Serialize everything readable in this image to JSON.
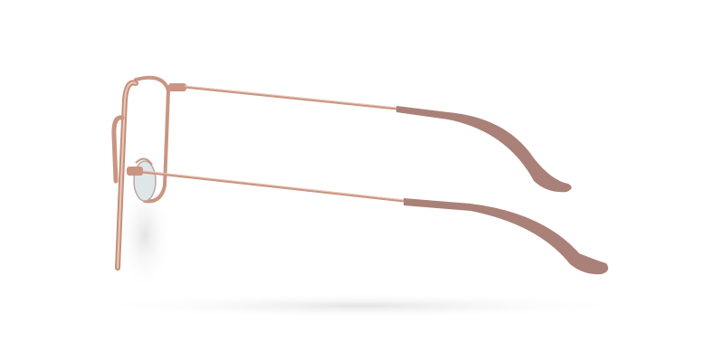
{
  "image": {
    "subject": "eyeglasses",
    "view": "side",
    "colors": {
      "background": "#ffffff",
      "frame_metal": "#c99582",
      "frame_highlight": "#e8c2b2",
      "temple_tips": "#a98178",
      "lens_pad": "#dfe6ea",
      "shadow": "#ebebeb"
    }
  }
}
